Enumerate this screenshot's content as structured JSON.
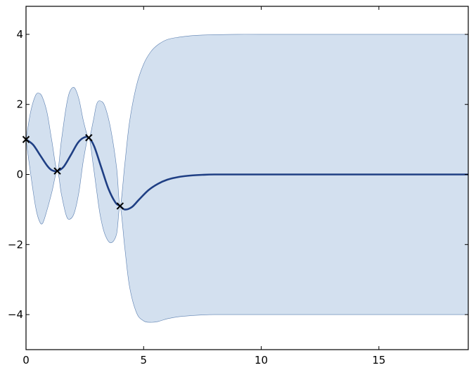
{
  "chart_data": {
    "type": "line",
    "title": "",
    "xlabel": "",
    "ylabel": "",
    "xlim": [
      0,
      18.8
    ],
    "ylim": [
      -5,
      4.8
    ],
    "xticks": [
      0,
      5,
      10,
      15
    ],
    "yticks": [
      -4,
      -2,
      0,
      2,
      4
    ],
    "xtick_labels": [
      "0",
      "5",
      "10",
      "15"
    ],
    "ytick_labels": [
      "−4",
      "−2",
      "0",
      "2",
      "4"
    ],
    "grid": false,
    "legend": "none",
    "colors": {
      "mean_line": "#1f3f84",
      "band_fill": "#d3e0ef",
      "band_edge": "#5b7fb0",
      "marker": "#000000"
    },
    "observations": {
      "marker": "x",
      "x": [
        0.0,
        1.33,
        2.67,
        4.0
      ],
      "y": [
        1.0,
        0.1,
        1.05,
        -0.9
      ]
    },
    "mean": {
      "x": [
        0.0,
        0.3,
        0.6,
        0.9,
        1.1,
        1.33,
        1.6,
        1.9,
        2.2,
        2.45,
        2.67,
        2.9,
        3.2,
        3.5,
        3.8,
        4.0,
        4.2,
        4.5,
        4.8,
        5.2,
        5.6,
        6.0,
        6.5,
        7.0,
        7.5,
        8.0,
        9.0,
        10.0,
        12.0,
        15.0,
        18.8
      ],
      "y": [
        1.0,
        0.85,
        0.55,
        0.25,
        0.12,
        0.1,
        0.22,
        0.55,
        0.9,
        1.05,
        1.05,
        0.8,
        0.2,
        -0.4,
        -0.8,
        -0.9,
        -1.0,
        -0.93,
        -0.72,
        -0.45,
        -0.27,
        -0.15,
        -0.07,
        -0.03,
        -0.01,
        0.0,
        0.0,
        0.0,
        0.0,
        0.0,
        0.0
      ]
    },
    "band_upper": {
      "x": [
        0.0,
        0.2,
        0.4,
        0.55,
        0.7,
        0.9,
        1.1,
        1.33,
        1.5,
        1.7,
        1.85,
        2.05,
        2.25,
        2.45,
        2.67,
        2.85,
        3.0,
        3.15,
        3.35,
        3.6,
        3.85,
        4.0,
        4.2,
        4.4,
        4.7,
        5.0,
        5.3,
        5.6,
        6.0,
        6.5,
        7.0,
        7.5,
        8.0,
        9.0,
        10.0,
        12.0,
        15.0,
        18.8
      ],
      "y": [
        1.0,
        1.8,
        2.25,
        2.32,
        2.2,
        1.75,
        0.95,
        0.1,
        0.95,
        1.9,
        2.35,
        2.48,
        2.15,
        1.5,
        1.05,
        1.5,
        2.0,
        2.1,
        1.95,
        1.3,
        0.2,
        -0.9,
        0.3,
        1.5,
        2.55,
        3.15,
        3.5,
        3.7,
        3.85,
        3.92,
        3.96,
        3.98,
        3.99,
        4.0,
        4.0,
        4.0,
        4.0,
        4.0
      ]
    },
    "band_lower": {
      "x": [
        0.0,
        0.2,
        0.4,
        0.55,
        0.7,
        0.9,
        1.1,
        1.33,
        1.5,
        1.7,
        1.85,
        2.05,
        2.25,
        2.45,
        2.67,
        2.85,
        3.0,
        3.15,
        3.35,
        3.6,
        3.85,
        4.0,
        4.2,
        4.4,
        4.7,
        5.0,
        5.3,
        5.6,
        6.0,
        6.5,
        7.0,
        7.5,
        8.0,
        9.0,
        10.0,
        12.0,
        15.0,
        18.8
      ],
      "y": [
        1.0,
        0.0,
        -0.9,
        -1.3,
        -1.4,
        -1.0,
        -0.5,
        0.1,
        -0.55,
        -1.15,
        -1.28,
        -1.1,
        -0.5,
        0.45,
        1.05,
        0.3,
        -0.45,
        -1.15,
        -1.7,
        -1.95,
        -1.7,
        -0.9,
        -2.1,
        -3.2,
        -3.95,
        -4.18,
        -4.22,
        -4.2,
        -4.12,
        -4.06,
        -4.03,
        -4.01,
        -4.0,
        -4.0,
        -4.0,
        -4.0,
        -4.0,
        -4.0
      ]
    }
  }
}
